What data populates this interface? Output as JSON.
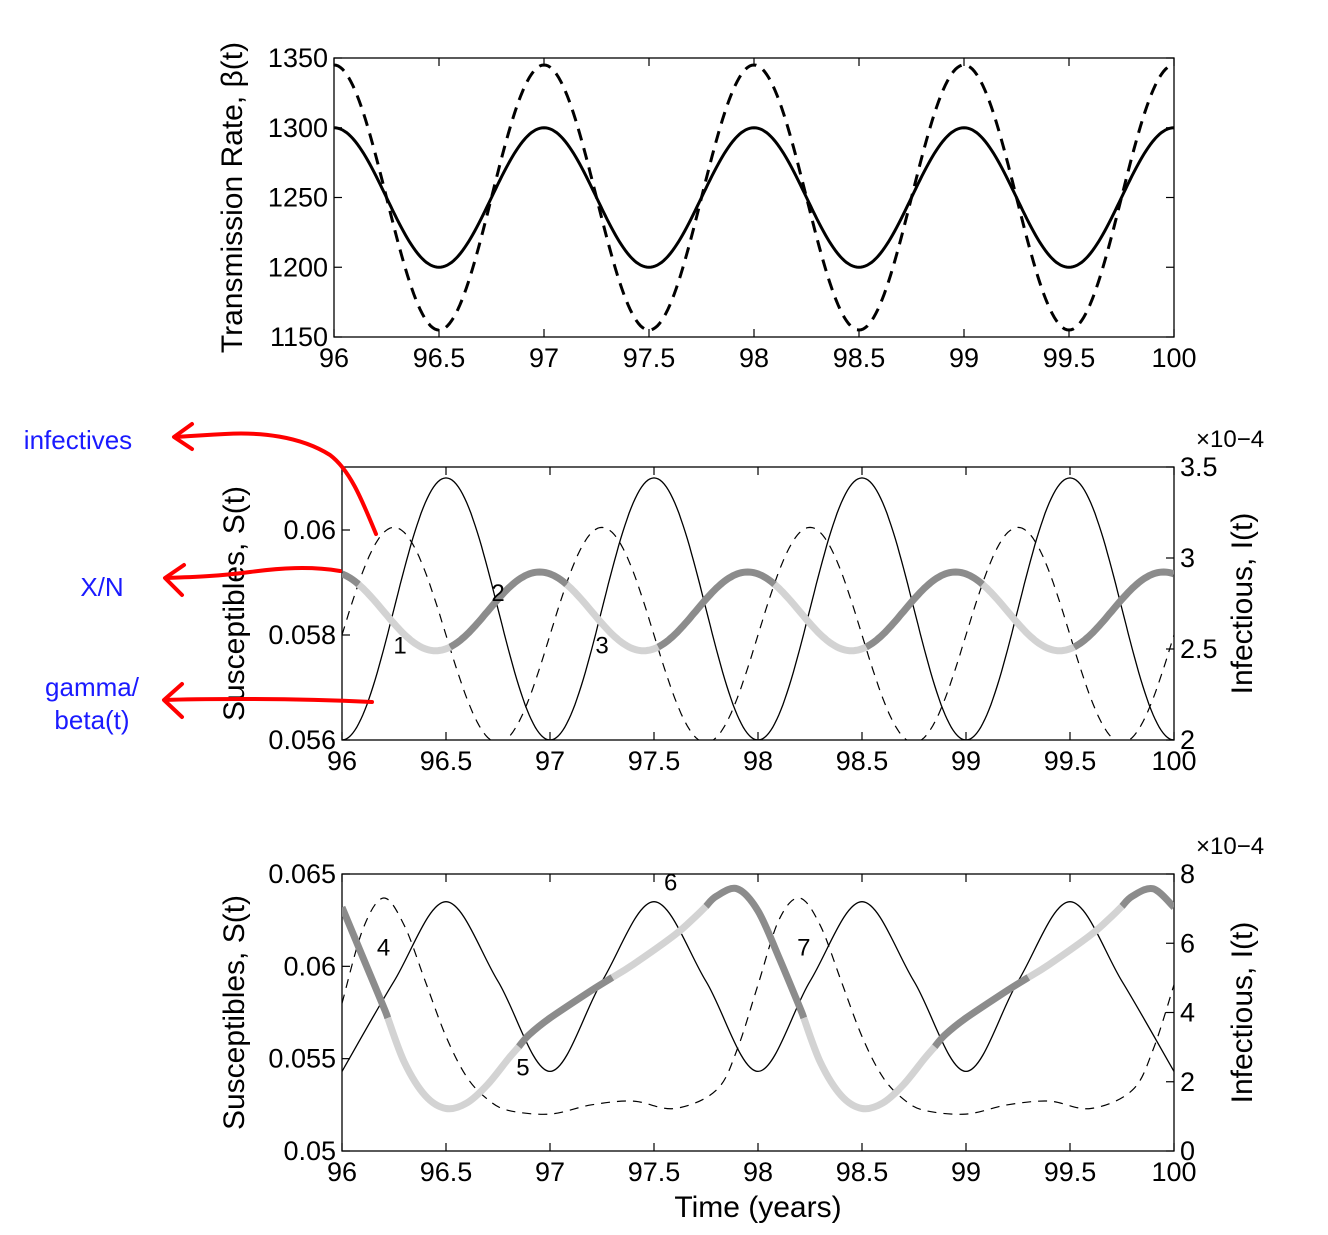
{
  "chart_data": [
    {
      "type": "line",
      "ylabel": "Transmission Rate, β(t)",
      "xlim": [
        96,
        100
      ],
      "ylim": [
        1150,
        1350
      ],
      "xticks": [
        96,
        96.5,
        97,
        97.5,
        98,
        98.5,
        99,
        99.5,
        100
      ],
      "yticks": [
        1150,
        1200,
        1250,
        1300,
        1350
      ],
      "series": [
        {
          "style": "solid",
          "mean": 1250,
          "amplitude": 50,
          "period_years": 1,
          "peak_at": 96.0,
          "x": [
            96,
            96.25,
            96.5,
            96.75,
            97,
            97.25,
            97.5,
            97.75,
            98,
            98.25,
            98.5,
            98.75,
            99,
            99.25,
            99.5,
            99.75,
            100
          ],
          "y": [
            1300,
            1250,
            1200,
            1250,
            1300,
            1250,
            1200,
            1250,
            1300,
            1250,
            1200,
            1250,
            1300,
            1250,
            1200,
            1250,
            1300
          ]
        },
        {
          "style": "dashed",
          "mean": 1250,
          "amplitude": 95,
          "period_years": 1,
          "peak_at": 96.0,
          "x": [
            96,
            96.25,
            96.5,
            96.75,
            97,
            97.25,
            97.5,
            97.75,
            98,
            98.25,
            98.5,
            98.75,
            99,
            99.25,
            99.5,
            99.75,
            100
          ],
          "y": [
            1345,
            1250,
            1155,
            1250,
            1345,
            1250,
            1155,
            1250,
            1345,
            1250,
            1155,
            1250,
            1345,
            1250,
            1155,
            1250,
            1345
          ]
        }
      ]
    },
    {
      "type": "line",
      "ylabel": "Susceptibles, S(t)",
      "y2label": "Infectious, I(t)",
      "y2_exponent": "×10−4",
      "xlim": [
        96,
        100
      ],
      "ylim": [
        0.056,
        0.0612
      ],
      "y2lim": [
        2.0,
        3.5
      ],
      "xticks": [
        96,
        96.5,
        97,
        97.5,
        98,
        98.5,
        99,
        99.5,
        100
      ],
      "yticks": [
        0.056,
        0.058,
        0.06
      ],
      "y2ticks": [
        2,
        2.5,
        3,
        3.5
      ],
      "series": [
        {
          "name": "S(t)",
          "axis": "left",
          "style": "thick-shaded",
          "mean": 0.05845,
          "amplitude": 0.00075,
          "period_years": 1,
          "peak_at": 96.95
        },
        {
          "name": "I(t)",
          "axis": "right",
          "style": "thin-solid",
          "mean": 2.72,
          "amplitude": 0.72,
          "period_years": 1,
          "peak_at": 96.5
        },
        {
          "name": "γ/β(t)",
          "axis": "left",
          "style": "thin-dashed",
          "mean": 0.058,
          "amplitude": 0.00205,
          "period_years": 1,
          "peak_at": 96.25
        }
      ],
      "markers": [
        {
          "label": "1",
          "x": 96.25
        },
        {
          "label": "2",
          "x": 96.75
        },
        {
          "label": "3",
          "x": 97.25
        }
      ],
      "annotations": [
        {
          "text": "infectives"
        },
        {
          "text": "X/N"
        },
        {
          "text": "gamma/\nbeta(t)"
        }
      ]
    },
    {
      "type": "line",
      "xlabel": "Time (years)",
      "ylabel": "Susceptibles, S(t)",
      "y2label": "Infectious, I(t)",
      "y2_exponent": "×10−4",
      "xlim": [
        96,
        100
      ],
      "ylim": [
        0.05,
        0.065
      ],
      "y2lim": [
        0,
        8
      ],
      "xticks": [
        96,
        96.5,
        97,
        97.5,
        98,
        98.5,
        99,
        99.5,
        100
      ],
      "yticks": [
        0.05,
        0.055,
        0.06,
        0.065
      ],
      "y2ticks": [
        0,
        2,
        4,
        6,
        8
      ],
      "series": [
        {
          "name": "S(t)",
          "axis": "left",
          "style": "thick-shaded",
          "x": [
            96.0,
            96.1,
            96.2,
            96.3,
            96.4,
            96.5,
            96.6,
            96.7,
            96.8,
            96.9,
            97.0,
            97.2,
            97.4,
            97.6,
            97.7,
            97.8,
            97.9,
            98.0,
            98.1,
            98.2,
            98.3,
            98.4,
            98.5,
            98.6,
            98.7,
            98.8,
            98.9,
            99.0,
            99.2,
            99.4,
            99.6,
            99.7,
            99.8,
            99.9,
            100.0
          ],
          "y": [
            0.0632,
            0.0605,
            0.0578,
            0.0548,
            0.053,
            0.0523,
            0.0526,
            0.0536,
            0.055,
            0.0563,
            0.0572,
            0.0587,
            0.0601,
            0.0617,
            0.0627,
            0.0638,
            0.0642,
            0.063,
            0.0605,
            0.0578,
            0.0548,
            0.053,
            0.0523,
            0.0526,
            0.0536,
            0.055,
            0.0563,
            0.0572,
            0.0587,
            0.0601,
            0.0617,
            0.0627,
            0.0638,
            0.0642,
            0.0632
          ]
        },
        {
          "name": "I(t)",
          "axis": "right",
          "style": "thin-solid",
          "x": [
            96.0,
            96.25,
            96.5,
            96.75,
            97.0,
            97.25,
            97.5,
            97.75,
            98.0,
            98.25,
            98.5,
            98.75,
            99.0,
            99.25,
            99.5,
            99.75,
            100.0
          ],
          "y": [
            2.3,
            4.9,
            7.2,
            4.9,
            2.3,
            4.9,
            7.2,
            4.9,
            2.3,
            4.9,
            7.2,
            4.9,
            2.3,
            4.9,
            7.2,
            4.9,
            2.3
          ]
        },
        {
          "name": "γ/β(t)",
          "axis": "left",
          "style": "thin-dashed",
          "x": [
            96.0,
            96.1,
            96.2,
            96.3,
            96.4,
            96.5,
            96.6,
            96.7,
            96.8,
            97.0,
            97.2,
            97.4,
            97.6,
            97.8,
            97.9,
            98.0,
            98.1,
            98.2,
            98.3,
            98.4,
            98.5,
            98.6,
            98.7,
            98.8,
            99.0,
            99.2,
            99.4,
            99.6,
            99.8,
            99.9,
            100.0
          ],
          "y": [
            0.058,
            0.062,
            0.0637,
            0.0622,
            0.0592,
            0.0562,
            0.054,
            0.0528,
            0.0522,
            0.052,
            0.0525,
            0.0527,
            0.0523,
            0.0533,
            0.0555,
            0.059,
            0.0625,
            0.0637,
            0.0622,
            0.0592,
            0.0562,
            0.054,
            0.0528,
            0.0522,
            0.052,
            0.0525,
            0.0527,
            0.0523,
            0.0533,
            0.0555,
            0.059
          ]
        }
      ],
      "markers": [
        {
          "label": "4",
          "x": 96.2
        },
        {
          "label": "5",
          "x": 96.85
        },
        {
          "label": "6",
          "x": 97.55
        },
        {
          "label": "7",
          "x": 98.2
        }
      ]
    }
  ],
  "colors": {
    "annotation_arrow": "#ff0000",
    "annotation_text": "#1a1aff",
    "s_dark": "#8c8c8c",
    "s_light": "#d3d3d3",
    "line": "#000000"
  }
}
